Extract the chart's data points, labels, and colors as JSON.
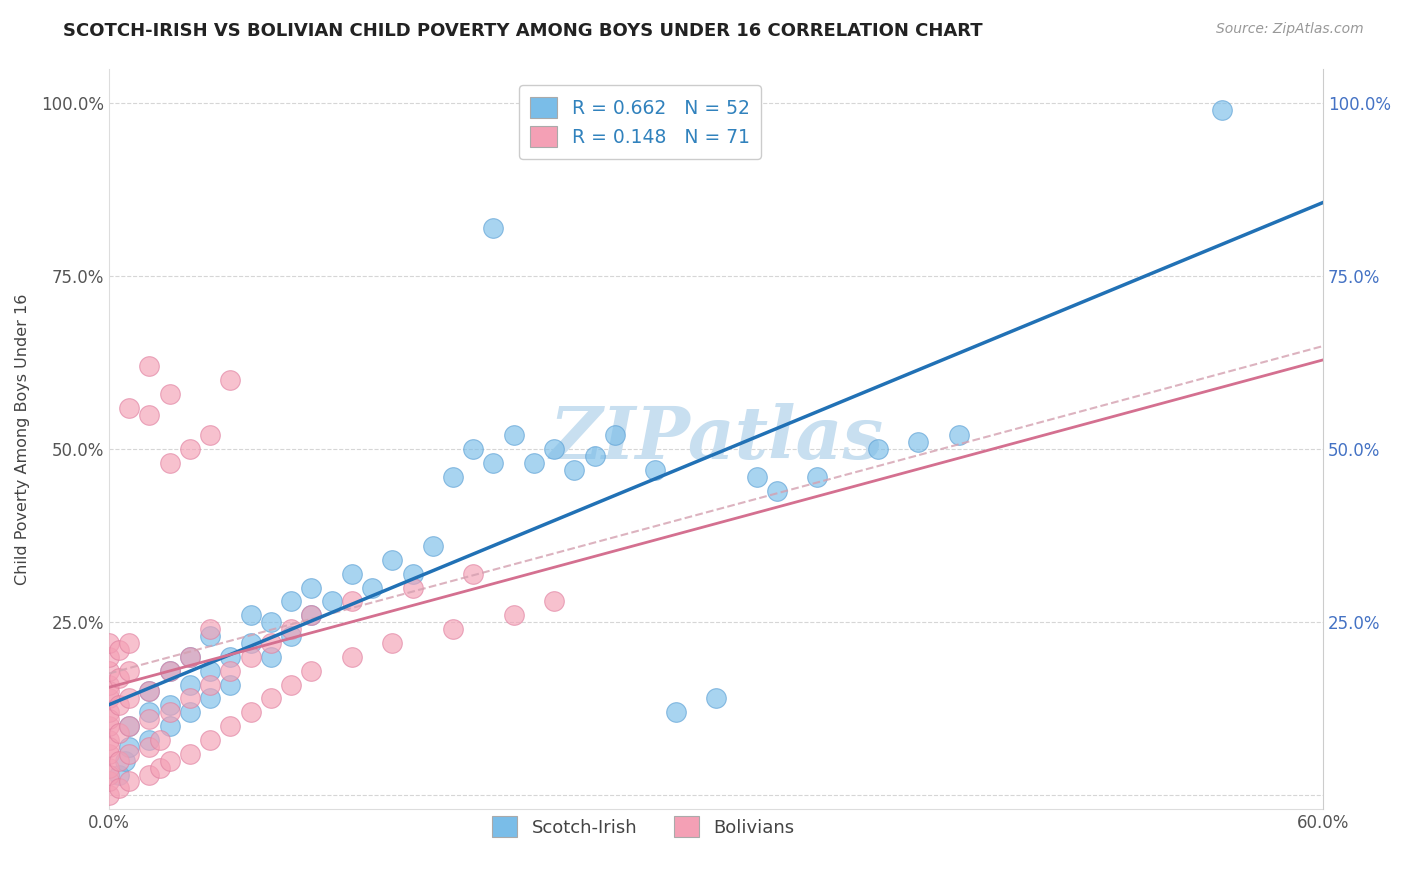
{
  "title": "SCOTCH-IRISH VS BOLIVIAN CHILD POVERTY AMONG BOYS UNDER 16 CORRELATION CHART",
  "source": "Source: ZipAtlas.com",
  "ylabel": "Child Poverty Among Boys Under 16",
  "scotch_irish_color": "#7abde8",
  "scotch_irish_color_edge": "#5a9fd4",
  "bolivian_color": "#f4a0b5",
  "bolivian_color_edge": "#e080a0",
  "scotch_irish_line_color": "#2171b5",
  "bolivian_line_color": "#d47090",
  "bolivian_dashed_color": "#d4a0b0",
  "watermark_color": "#c8dff0",
  "xlim": [
    0.0,
    0.6
  ],
  "ylim": [
    -0.02,
    1.05
  ],
  "scotch_irish_points": [
    [
      0.005,
      0.03
    ],
    [
      0.008,
      0.05
    ],
    [
      0.01,
      0.07
    ],
    [
      0.01,
      0.1
    ],
    [
      0.02,
      0.08
    ],
    [
      0.02,
      0.12
    ],
    [
      0.02,
      0.15
    ],
    [
      0.03,
      0.1
    ],
    [
      0.03,
      0.13
    ],
    [
      0.03,
      0.18
    ],
    [
      0.04,
      0.12
    ],
    [
      0.04,
      0.16
    ],
    [
      0.04,
      0.2
    ],
    [
      0.05,
      0.14
    ],
    [
      0.05,
      0.18
    ],
    [
      0.05,
      0.23
    ],
    [
      0.06,
      0.16
    ],
    [
      0.06,
      0.2
    ],
    [
      0.07,
      0.22
    ],
    [
      0.07,
      0.26
    ],
    [
      0.08,
      0.2
    ],
    [
      0.08,
      0.25
    ],
    [
      0.09,
      0.23
    ],
    [
      0.09,
      0.28
    ],
    [
      0.1,
      0.26
    ],
    [
      0.1,
      0.3
    ],
    [
      0.11,
      0.28
    ],
    [
      0.12,
      0.32
    ],
    [
      0.13,
      0.3
    ],
    [
      0.14,
      0.34
    ],
    [
      0.15,
      0.32
    ],
    [
      0.16,
      0.36
    ],
    [
      0.17,
      0.46
    ],
    [
      0.18,
      0.5
    ],
    [
      0.19,
      0.48
    ],
    [
      0.2,
      0.52
    ],
    [
      0.21,
      0.48
    ],
    [
      0.22,
      0.5
    ],
    [
      0.23,
      0.47
    ],
    [
      0.24,
      0.49
    ],
    [
      0.25,
      0.52
    ],
    [
      0.27,
      0.47
    ],
    [
      0.28,
      0.12
    ],
    [
      0.3,
      0.14
    ],
    [
      0.32,
      0.46
    ],
    [
      0.33,
      0.44
    ],
    [
      0.35,
      0.46
    ],
    [
      0.38,
      0.5
    ],
    [
      0.4,
      0.51
    ],
    [
      0.42,
      0.52
    ],
    [
      0.19,
      0.82
    ],
    [
      0.55,
      0.99
    ]
  ],
  "bolivian_points": [
    [
      0.0,
      0.0
    ],
    [
      0.0,
      0.02
    ],
    [
      0.0,
      0.04
    ],
    [
      0.0,
      0.06
    ],
    [
      0.0,
      0.08
    ],
    [
      0.0,
      0.1
    ],
    [
      0.0,
      0.12
    ],
    [
      0.0,
      0.14
    ],
    [
      0.0,
      0.16
    ],
    [
      0.0,
      0.18
    ],
    [
      0.0,
      0.2
    ],
    [
      0.0,
      0.22
    ],
    [
      0.0,
      0.03
    ],
    [
      0.0,
      0.07
    ],
    [
      0.0,
      0.11
    ],
    [
      0.0,
      0.15
    ],
    [
      0.005,
      0.01
    ],
    [
      0.005,
      0.05
    ],
    [
      0.005,
      0.09
    ],
    [
      0.005,
      0.13
    ],
    [
      0.005,
      0.17
    ],
    [
      0.005,
      0.21
    ],
    [
      0.01,
      0.02
    ],
    [
      0.01,
      0.06
    ],
    [
      0.01,
      0.1
    ],
    [
      0.01,
      0.14
    ],
    [
      0.01,
      0.18
    ],
    [
      0.01,
      0.22
    ],
    [
      0.02,
      0.03
    ],
    [
      0.02,
      0.07
    ],
    [
      0.02,
      0.11
    ],
    [
      0.02,
      0.15
    ],
    [
      0.02,
      0.55
    ],
    [
      0.025,
      0.04
    ],
    [
      0.025,
      0.08
    ],
    [
      0.03,
      0.05
    ],
    [
      0.03,
      0.12
    ],
    [
      0.03,
      0.18
    ],
    [
      0.04,
      0.06
    ],
    [
      0.04,
      0.14
    ],
    [
      0.04,
      0.2
    ],
    [
      0.05,
      0.08
    ],
    [
      0.05,
      0.16
    ],
    [
      0.05,
      0.24
    ],
    [
      0.06,
      0.1
    ],
    [
      0.06,
      0.18
    ],
    [
      0.07,
      0.12
    ],
    [
      0.07,
      0.2
    ],
    [
      0.08,
      0.14
    ],
    [
      0.08,
      0.22
    ],
    [
      0.09,
      0.16
    ],
    [
      0.09,
      0.24
    ],
    [
      0.1,
      0.18
    ],
    [
      0.1,
      0.26
    ],
    [
      0.12,
      0.2
    ],
    [
      0.12,
      0.28
    ],
    [
      0.14,
      0.22
    ],
    [
      0.15,
      0.3
    ],
    [
      0.17,
      0.24
    ],
    [
      0.18,
      0.32
    ],
    [
      0.2,
      0.26
    ],
    [
      0.22,
      0.28
    ],
    [
      0.03,
      0.58
    ],
    [
      0.03,
      0.48
    ],
    [
      0.04,
      0.5
    ],
    [
      0.02,
      0.62
    ],
    [
      0.05,
      0.52
    ],
    [
      0.06,
      0.6
    ],
    [
      0.01,
      0.56
    ]
  ]
}
